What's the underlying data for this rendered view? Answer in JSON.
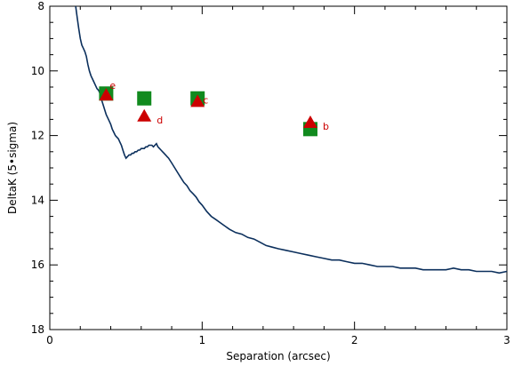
{
  "chart_data": {
    "type": "scatter",
    "xlabel": "Separation (arcsec)",
    "ylabel": "DeltaK (5•sigma)",
    "xlim": [
      0,
      3
    ],
    "ylim": [
      18,
      8
    ],
    "y_inverted": true,
    "x_ticks": [
      0,
      1,
      2,
      3
    ],
    "x_tick_labels": [
      "0",
      "1",
      "2",
      "3"
    ],
    "y_ticks": [
      8,
      10,
      12,
      14,
      16,
      18
    ],
    "y_tick_labels": [
      "8",
      "10",
      "12",
      "14",
      "16",
      "18"
    ],
    "grid": false,
    "legend": "none",
    "colors": {
      "curve": "#0b2f5c",
      "squares": "#118a1e",
      "triangles": "#cc0000",
      "labels": "#cc0000"
    },
    "series": [
      {
        "kind": "line",
        "x": [
          0.17,
          0.18,
          0.19,
          0.2,
          0.21,
          0.22,
          0.23,
          0.24,
          0.25,
          0.26,
          0.27,
          0.28,
          0.29,
          0.3,
          0.31,
          0.32,
          0.33,
          0.34,
          0.35,
          0.36,
          0.37,
          0.38,
          0.39,
          0.4,
          0.41,
          0.42,
          0.43,
          0.44,
          0.45,
          0.46,
          0.47,
          0.48,
          0.49,
          0.5,
          0.51,
          0.52,
          0.53,
          0.54,
          0.55,
          0.56,
          0.57,
          0.58,
          0.59,
          0.6,
          0.61,
          0.62,
          0.63,
          0.64,
          0.65,
          0.66,
          0.67,
          0.68,
          0.69,
          0.7,
          0.71,
          0.72,
          0.73,
          0.74,
          0.75,
          0.76,
          0.77,
          0.78,
          0.8,
          0.82,
          0.84,
          0.86,
          0.88,
          0.9,
          0.92,
          0.94,
          0.96,
          0.98,
          1.0,
          1.03,
          1.06,
          1.09,
          1.12,
          1.15,
          1.18,
          1.22,
          1.26,
          1.3,
          1.34,
          1.38,
          1.42,
          1.46,
          1.5,
          1.55,
          1.6,
          1.65,
          1.7,
          1.75,
          1.8,
          1.85,
          1.9,
          1.95,
          2.0,
          2.05,
          2.1,
          2.15,
          2.2,
          2.25,
          2.3,
          2.35,
          2.4,
          2.45,
          2.5,
          2.55,
          2.6,
          2.65,
          2.7,
          2.75,
          2.8,
          2.85,
          2.9,
          2.95,
          3.0
        ],
        "y": [
          8.0,
          8.35,
          8.7,
          9.0,
          9.2,
          9.3,
          9.4,
          9.55,
          9.8,
          10.0,
          10.15,
          10.25,
          10.35,
          10.45,
          10.55,
          10.6,
          10.7,
          10.9,
          11.05,
          11.2,
          11.35,
          11.45,
          11.55,
          11.65,
          11.8,
          11.9,
          12.0,
          12.05,
          12.1,
          12.2,
          12.3,
          12.45,
          12.6,
          12.7,
          12.65,
          12.6,
          12.6,
          12.55,
          12.55,
          12.5,
          12.5,
          12.45,
          12.45,
          12.4,
          12.4,
          12.4,
          12.35,
          12.35,
          12.3,
          12.3,
          12.3,
          12.35,
          12.3,
          12.25,
          12.35,
          12.4,
          12.45,
          12.5,
          12.55,
          12.6,
          12.65,
          12.7,
          12.85,
          13.0,
          13.15,
          13.3,
          13.45,
          13.55,
          13.7,
          13.8,
          13.9,
          14.05,
          14.15,
          14.35,
          14.5,
          14.6,
          14.7,
          14.8,
          14.9,
          15.0,
          15.05,
          15.15,
          15.2,
          15.3,
          15.4,
          15.45,
          15.5,
          15.55,
          15.6,
          15.65,
          15.7,
          15.75,
          15.8,
          15.85,
          15.85,
          15.9,
          15.95,
          15.95,
          16.0,
          16.05,
          16.05,
          16.05,
          16.1,
          16.1,
          16.1,
          16.15,
          16.15,
          16.15,
          16.15,
          16.1,
          16.15,
          16.15,
          16.2,
          16.2,
          16.2,
          16.25,
          16.2
        ]
      },
      {
        "kind": "square",
        "x": [
          0.37,
          0.62,
          0.97,
          1.71
        ],
        "y": [
          10.7,
          10.85,
          10.85,
          11.8
        ]
      },
      {
        "kind": "triangle",
        "x": [
          0.37,
          0.62,
          0.97,
          1.71
        ],
        "y": [
          10.75,
          11.4,
          10.95,
          11.6
        ],
        "labels": [
          "e",
          "d",
          "c",
          "b"
        ]
      }
    ]
  }
}
